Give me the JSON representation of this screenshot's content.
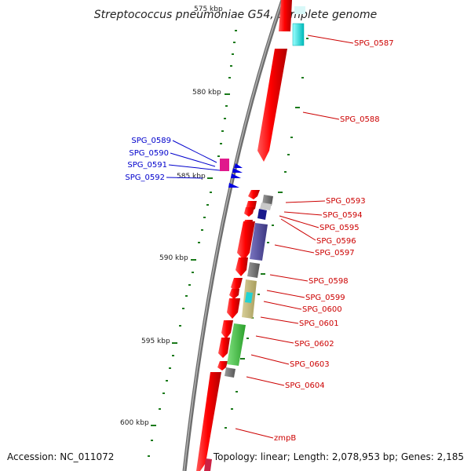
{
  "title": "Streptococcus pneumoniae G54, complete genome",
  "footer": {
    "accession": "Accession: NC_011072",
    "topology": "Topology: linear; Length: 2,078,953 bp; Genes: 2,185"
  },
  "ruler_labels": [
    "575 kbp",
    "580 kbp",
    "585 kbp",
    "590 kbp",
    "595 kbp",
    "600 kbp"
  ],
  "genes_minus_labels": [
    "SPG_0589",
    "SPG_0590",
    "SPG_0591",
    "SPG_0592"
  ],
  "genes_plus_labels": [
    "SPG_0587",
    "SPG_0588",
    "SPG_0593",
    "SPG_0594",
    "SPG_0595",
    "SPG_0596",
    "SPG_0597",
    "SPG_0598",
    "SPG_0599",
    "SPG_0600",
    "SPG_0601",
    "SPG_0602",
    "SPG_0603",
    "SPG_0604",
    "zmpB"
  ],
  "colors": {
    "plus_label": "#cc0000",
    "minus_label": "#0000cc",
    "gene_red": "#ee0000",
    "tick": "#1a7a1a"
  }
}
